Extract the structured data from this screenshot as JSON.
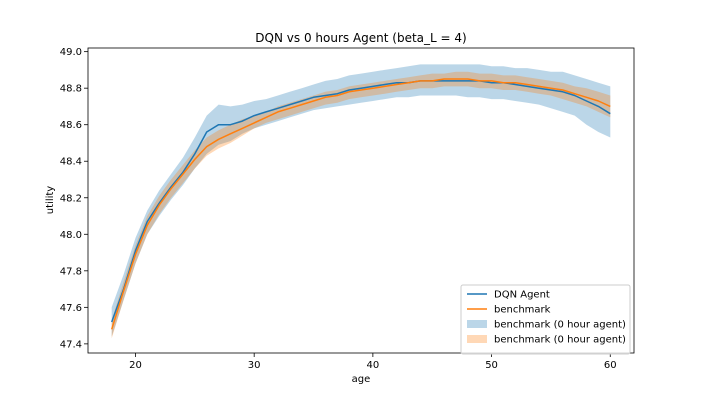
{
  "chart_data": {
    "type": "line",
    "title": "DQN vs 0 hours Agent (beta_L = 4)",
    "xlabel": "age",
    "ylabel": "utility",
    "xlim": [
      16,
      62
    ],
    "ylim": [
      47.35,
      49.02
    ],
    "xticks": [
      20,
      30,
      40,
      50,
      60
    ],
    "yticks": [
      47.4,
      47.6,
      47.8,
      48.0,
      48.2,
      48.4,
      48.6,
      48.8,
      49.0
    ],
    "grid": false,
    "legend_position": "lower-right",
    "x": [
      18,
      19,
      20,
      21,
      22,
      23,
      24,
      25,
      26,
      27,
      28,
      29,
      30,
      31,
      32,
      33,
      34,
      35,
      36,
      37,
      38,
      39,
      40,
      41,
      42,
      43,
      44,
      45,
      46,
      47,
      48,
      49,
      50,
      51,
      52,
      53,
      54,
      55,
      56,
      57,
      58,
      59,
      60
    ],
    "series": [
      {
        "name": "DQN Agent",
        "kind": "line",
        "color": "#1f77b4",
        "values": [
          47.52,
          47.7,
          47.91,
          48.07,
          48.17,
          48.26,
          48.34,
          48.44,
          48.56,
          48.6,
          48.6,
          48.62,
          48.65,
          48.67,
          48.69,
          48.71,
          48.73,
          48.75,
          48.76,
          48.77,
          48.79,
          48.8,
          48.81,
          48.82,
          48.83,
          48.83,
          48.84,
          48.84,
          48.84,
          48.84,
          48.84,
          48.84,
          48.83,
          48.83,
          48.82,
          48.81,
          48.8,
          48.79,
          48.78,
          48.76,
          48.73,
          48.7,
          48.66
        ]
      },
      {
        "name": "benchmark",
        "kind": "line",
        "color": "#ff7f0e",
        "values": [
          47.48,
          47.69,
          47.89,
          48.05,
          48.16,
          48.25,
          48.33,
          48.41,
          48.48,
          48.52,
          48.55,
          48.58,
          48.61,
          48.64,
          48.67,
          48.69,
          48.71,
          48.73,
          48.75,
          48.76,
          48.78,
          48.79,
          48.8,
          48.81,
          48.82,
          48.83,
          48.84,
          48.84,
          48.85,
          48.85,
          48.85,
          48.84,
          48.84,
          48.83,
          48.83,
          48.82,
          48.81,
          48.8,
          48.79,
          48.77,
          48.75,
          48.73,
          48.7
        ]
      },
      {
        "name": "benchmark (0 hour agent)",
        "kind": "band",
        "color": "#1f77b4",
        "opacity": 0.3,
        "lower": [
          47.44,
          47.64,
          47.84,
          48.0,
          48.1,
          48.19,
          48.27,
          48.36,
          48.44,
          48.49,
          48.51,
          48.55,
          48.58,
          48.6,
          48.62,
          48.64,
          48.66,
          48.68,
          48.69,
          48.7,
          48.71,
          48.72,
          48.73,
          48.74,
          48.75,
          48.75,
          48.76,
          48.76,
          48.76,
          48.76,
          48.75,
          48.75,
          48.74,
          48.74,
          48.73,
          48.72,
          48.71,
          48.69,
          48.67,
          48.65,
          48.6,
          48.56,
          48.53
        ],
        "upper": [
          47.6,
          47.78,
          47.98,
          48.13,
          48.24,
          48.33,
          48.42,
          48.53,
          48.65,
          48.71,
          48.7,
          48.71,
          48.73,
          48.74,
          48.76,
          48.78,
          48.8,
          48.82,
          48.84,
          48.85,
          48.87,
          48.88,
          48.89,
          48.9,
          48.91,
          48.92,
          48.93,
          48.93,
          48.93,
          48.93,
          48.93,
          48.93,
          48.92,
          48.92,
          48.91,
          48.91,
          48.9,
          48.89,
          48.89,
          48.87,
          48.85,
          48.83,
          48.81
        ]
      },
      {
        "name": "benchmark (0 hour agent)",
        "kind": "band",
        "color": "#ff7f0e",
        "opacity": 0.3,
        "lower": [
          47.43,
          47.64,
          47.84,
          48.0,
          48.11,
          48.2,
          48.28,
          48.36,
          48.43,
          48.47,
          48.5,
          48.54,
          48.58,
          48.61,
          48.63,
          48.65,
          48.67,
          48.69,
          48.71,
          48.72,
          48.74,
          48.75,
          48.76,
          48.77,
          48.78,
          48.79,
          48.8,
          48.8,
          48.81,
          48.81,
          48.81,
          48.8,
          48.8,
          48.79,
          48.79,
          48.78,
          48.77,
          48.76,
          48.74,
          48.72,
          48.7,
          48.67,
          48.64
        ],
        "upper": [
          47.53,
          47.74,
          47.94,
          48.1,
          48.21,
          48.3,
          48.38,
          48.46,
          48.53,
          48.57,
          48.6,
          48.63,
          48.65,
          48.67,
          48.7,
          48.72,
          48.74,
          48.76,
          48.78,
          48.79,
          48.81,
          48.82,
          48.83,
          48.84,
          48.85,
          48.86,
          48.87,
          48.88,
          48.88,
          48.89,
          48.89,
          48.88,
          48.88,
          48.87,
          48.87,
          48.86,
          48.85,
          48.84,
          48.83,
          48.81,
          48.8,
          48.78,
          48.76
        ]
      }
    ]
  }
}
